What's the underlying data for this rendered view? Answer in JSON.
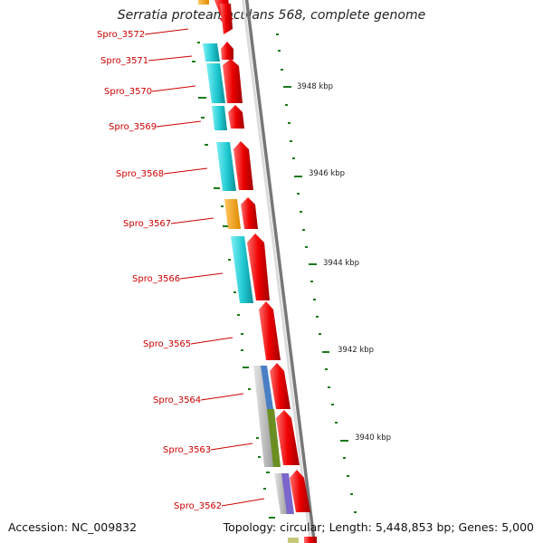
{
  "title": "Serratia proteamaculans 568, complete genome",
  "footer": {
    "accession": "Accession: NC_009832",
    "summary": "Topology: circular; Length: 5,448,853 bp; Genes: 5,000"
  },
  "gene_labels": [
    "Spro_3572",
    "Spro_3571",
    "Spro_3570",
    "Spro_3569",
    "Spro_3568",
    "Spro_3567",
    "Spro_3566",
    "Spro_3565",
    "Spro_3564",
    "Spro_3563",
    "Spro_3562"
  ],
  "scale_labels": [
    "3948 kbp",
    "3946 kbp",
    "3944 kbp",
    "3942 kbp",
    "3940 kbp"
  ],
  "colors": {
    "gene": "#ee0000",
    "cog_cyan": "#1fc9d2",
    "cog_orange": "#f5a000",
    "cog_blue": "#4a7fc4",
    "cog_green": "#6b8e23",
    "cog_purple": "#7a66cc",
    "cog_grey": "#b8b8b8",
    "cog_olive": "#c8c87a",
    "label_red": "#cc0000",
    "tick_green": "#1a7a1a",
    "backbone": "#777777"
  }
}
